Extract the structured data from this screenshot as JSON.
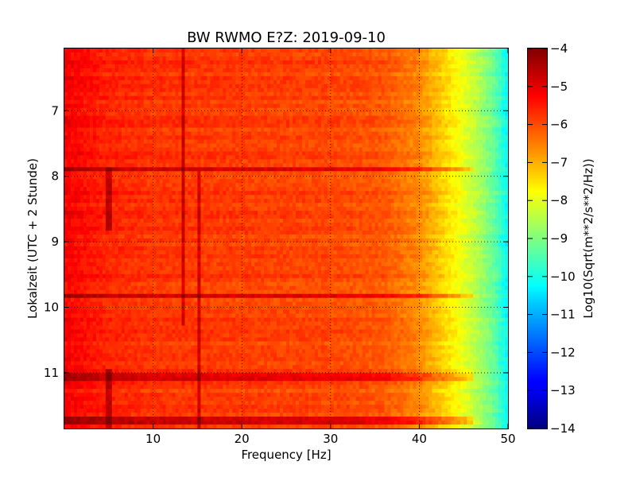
{
  "chart_data": {
    "type": "heatmap",
    "title": "BW RWMO E?Z: 2019-09-10",
    "xlabel": "Frequency [Hz]",
    "ylabel": "Lokalzeit (UTC + 2 Stunde)",
    "xlim": [
      0,
      50
    ],
    "ylim": [
      6.05,
      11.85
    ],
    "y_inverted": true,
    "x_ticks": [
      10,
      20,
      30,
      40,
      50
    ],
    "x_tick_labels": [
      "10",
      "20",
      "30",
      "40",
      "50"
    ],
    "y_ticks": [
      7,
      8,
      9,
      10,
      11
    ],
    "y_tick_labels": [
      "7",
      "8",
      "9",
      "10",
      "11"
    ],
    "grid": true,
    "colormap": "jet",
    "colorbar": {
      "label": "Log10(Sqrt(m**2/s**2/Hz))",
      "range": [
        -14,
        -4
      ],
      "ticks": [
        -4,
        -5,
        -6,
        -7,
        -8,
        -9,
        -10,
        -11,
        -12,
        -13,
        -14
      ],
      "tick_labels": [
        "−4",
        "−5",
        "−6",
        "−7",
        "−8",
        "−9",
        "−10",
        "−11",
        "−12",
        "−13",
        "−14"
      ]
    },
    "spectral_profile": {
      "description_values_log10": [
        {
          "freq_hz": 0.2,
          "value": -5.2
        },
        {
          "freq_hz": 5,
          "value": -5.6
        },
        {
          "freq_hz": 10,
          "value": -5.75
        },
        {
          "freq_hz": 20,
          "value": -5.85
        },
        {
          "freq_hz": 30,
          "value": -5.95
        },
        {
          "freq_hz": 36,
          "value": -6.1
        },
        {
          "freq_hz": 40,
          "value": -6.6
        },
        {
          "freq_hz": 43,
          "value": -7.4
        },
        {
          "freq_hz": 46,
          "value": -8.3
        },
        {
          "freq_hz": 48.5,
          "value": -9.3
        },
        {
          "freq_hz": 50,
          "value": -10.3
        }
      ]
    },
    "strong_horizontal_bands_hours": [
      7.9,
      9.82,
      11.08,
      11.72
    ],
    "vertical_lines": [
      {
        "freq_hz": 5.0,
        "from": 7.88,
        "to": 8.8
      },
      {
        "freq_hz": 5.0,
        "from": 10.95,
        "to": 11.85
      },
      {
        "freq_hz": 13.5,
        "from": 6.05,
        "to": 10.3
      },
      {
        "freq_hz": 15.3,
        "from": 7.9,
        "to": 11.85
      }
    ]
  }
}
